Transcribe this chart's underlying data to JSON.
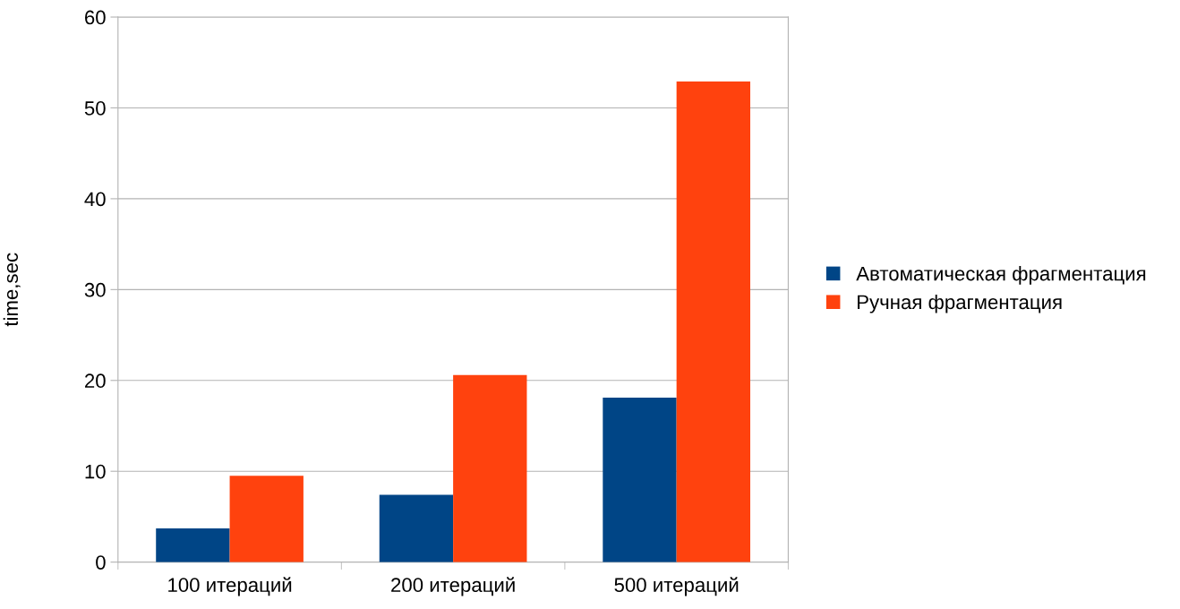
{
  "chart_data": {
    "type": "bar",
    "ylabel": "time,sec",
    "categories": [
      "100 итераций",
      "200 итераций",
      "500 итераций"
    ],
    "series": [
      {
        "name": "Автоматическая фрагментация",
        "color": "#004586",
        "values": [
          3.7,
          7.4,
          18.1
        ]
      },
      {
        "name": "Ручная фрагментация",
        "color": "#ff420e",
        "values": [
          9.5,
          20.6,
          52.9
        ]
      }
    ],
    "ylim": [
      0,
      60
    ],
    "yticks": [
      0,
      10,
      20,
      30,
      40,
      50,
      60
    ],
    "grid": "y",
    "legend": "right"
  }
}
